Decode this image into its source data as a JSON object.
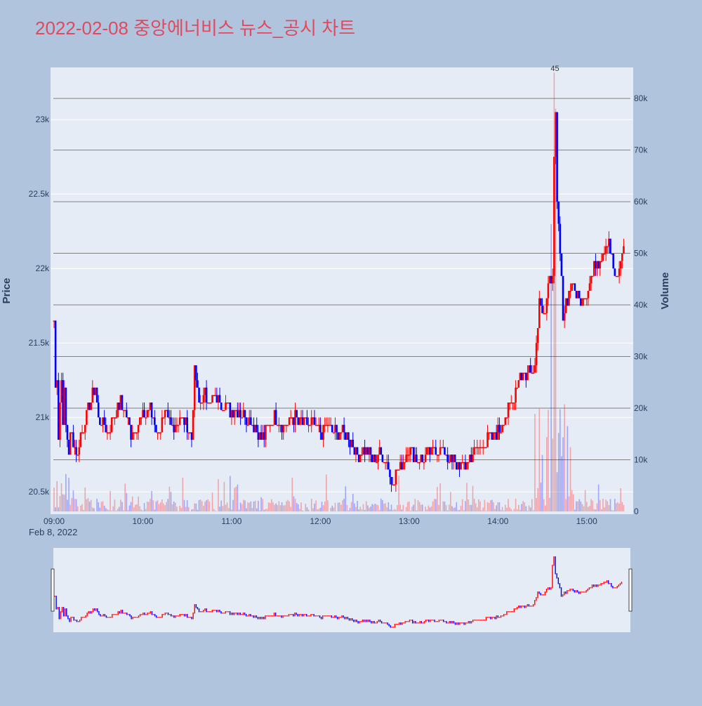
{
  "page": {
    "background": "#b0c4de"
  },
  "title": "2022-02-08 중앙에너비스 뉴스_공시 차트",
  "colors": {
    "title": "#e04a5f",
    "up": "#ff0000",
    "down": "#0000ff",
    "plot_bg": "#e5ecf6",
    "grid_price": "#ffffff",
    "grid_volume": "#808080",
    "tick_text": "#2a3f5f"
  },
  "chart_data": {
    "type": "candlestick",
    "x_axis": {
      "ticks": [
        "09:00",
        "10:00",
        "11:00",
        "12:00",
        "13:00",
        "14:00",
        "15:00"
      ],
      "date_label": "Feb 8, 2022",
      "range": [
        "09:00",
        "15:30"
      ]
    },
    "y_price": {
      "label": "Price",
      "range": [
        20350,
        23350
      ],
      "ticks": [
        {
          "v": 20500,
          "t": "20.5k"
        },
        {
          "v": 21000,
          "t": "21k"
        },
        {
          "v": 21500,
          "t": "21.5k"
        },
        {
          "v": 22000,
          "t": "22k"
        },
        {
          "v": 22500,
          "t": "22.5k"
        },
        {
          "v": 23000,
          "t": "23k"
        }
      ]
    },
    "y_volume": {
      "label": "Volume",
      "range": [
        0,
        86000
      ],
      "ticks": [
        {
          "v": 0,
          "t": "0"
        },
        {
          "v": 10000,
          "t": "10k"
        },
        {
          "v": 20000,
          "t": "20k"
        },
        {
          "v": 30000,
          "t": "30k"
        },
        {
          "v": 40000,
          "t": "40k"
        },
        {
          "v": 50000,
          "t": "50k"
        },
        {
          "v": 60000,
          "t": "60k"
        },
        {
          "v": 70000,
          "t": "70k"
        },
        {
          "v": 80000,
          "t": "80k"
        }
      ]
    },
    "annotations": [
      {
        "text": "4",
        "time": "14:38"
      },
      {
        "text": "5",
        "time": "14:39"
      }
    ],
    "price_series": [
      [
        "09:00",
        21650
      ],
      [
        "09:01",
        21200
      ],
      [
        "09:02",
        21300
      ],
      [
        "09:03",
        20900
      ],
      [
        "09:04",
        21100
      ],
      [
        "09:05",
        21250
      ],
      [
        "09:06",
        21000
      ],
      [
        "09:07",
        21150
      ],
      [
        "09:08",
        20950
      ],
      [
        "09:09",
        20850
      ],
      [
        "09:10",
        20750
      ],
      [
        "09:11",
        20850
      ],
      [
        "09:12",
        20900
      ],
      [
        "09:14",
        20800
      ],
      [
        "09:16",
        20750
      ],
      [
        "09:18",
        20900
      ],
      [
        "09:20",
        20950
      ],
      [
        "09:25",
        21100
      ],
      [
        "09:28",
        21200
      ],
      [
        "09:30",
        21000
      ],
      [
        "09:33",
        20950
      ],
      [
        "09:36",
        20900
      ],
      [
        "09:40",
        21000
      ],
      [
        "09:44",
        21100
      ],
      [
        "09:48",
        21050
      ],
      [
        "09:52",
        20900
      ],
      [
        "09:56",
        20950
      ],
      [
        "10:00",
        21000
      ],
      [
        "10:05",
        21050
      ],
      [
        "10:10",
        20900
      ],
      [
        "10:15",
        21000
      ],
      [
        "10:20",
        20950
      ],
      [
        "10:25",
        21000
      ],
      [
        "10:30",
        20950
      ],
      [
        "10:33",
        20850
      ],
      [
        "10:35",
        21300
      ],
      [
        "10:38",
        21100
      ],
      [
        "10:42",
        21150
      ],
      [
        "10:46",
        21100
      ],
      [
        "10:50",
        21150
      ],
      [
        "10:55",
        21100
      ],
      [
        "11:00",
        21050
      ],
      [
        "11:06",
        21050
      ],
      [
        "11:10",
        21000
      ],
      [
        "11:15",
        20950
      ],
      [
        "11:20",
        20850
      ],
      [
        "11:25",
        20950
      ],
      [
        "11:30",
        21000
      ],
      [
        "11:36",
        20950
      ],
      [
        "11:42",
        21000
      ],
      [
        "11:48",
        20950
      ],
      [
        "11:54",
        20950
      ],
      [
        "12:00",
        20900
      ],
      [
        "12:05",
        20950
      ],
      [
        "12:10",
        20900
      ],
      [
        "12:15",
        20900
      ],
      [
        "12:20",
        20850
      ],
      [
        "12:25",
        20750
      ],
      [
        "12:30",
        20800
      ],
      [
        "12:35",
        20700
      ],
      [
        "12:40",
        20750
      ],
      [
        "12:45",
        20700
      ],
      [
        "12:48",
        20550
      ],
      [
        "12:52",
        20650
      ],
      [
        "12:56",
        20700
      ],
      [
        "13:00",
        20800
      ],
      [
        "13:06",
        20700
      ],
      [
        "13:12",
        20750
      ],
      [
        "13:18",
        20800
      ],
      [
        "13:24",
        20750
      ],
      [
        "13:30",
        20700
      ],
      [
        "13:36",
        20650
      ],
      [
        "13:42",
        20750
      ],
      [
        "13:48",
        20800
      ],
      [
        "13:54",
        20850
      ],
      [
        "14:00",
        20900
      ],
      [
        "14:05",
        21000
      ],
      [
        "14:10",
        21100
      ],
      [
        "14:15",
        21300
      ],
      [
        "14:20",
        21300
      ],
      [
        "14:25",
        21350
      ],
      [
        "14:28",
        21800
      ],
      [
        "14:32",
        21700
      ],
      [
        "14:35",
        21900
      ],
      [
        "14:37",
        22000
      ],
      [
        "14:38",
        22700
      ],
      [
        "14:39",
        23000
      ],
      [
        "14:40",
        22400
      ],
      [
        "14:42",
        22100
      ],
      [
        "14:44",
        21700
      ],
      [
        "14:47",
        21800
      ],
      [
        "14:50",
        21900
      ],
      [
        "14:55",
        21800
      ],
      [
        "15:00",
        21850
      ],
      [
        "15:05",
        22000
      ],
      [
        "15:10",
        22100
      ],
      [
        "15:15",
        22200
      ],
      [
        "15:20",
        21900
      ],
      [
        "15:25",
        22150
      ]
    ]
  },
  "minimap": {}
}
